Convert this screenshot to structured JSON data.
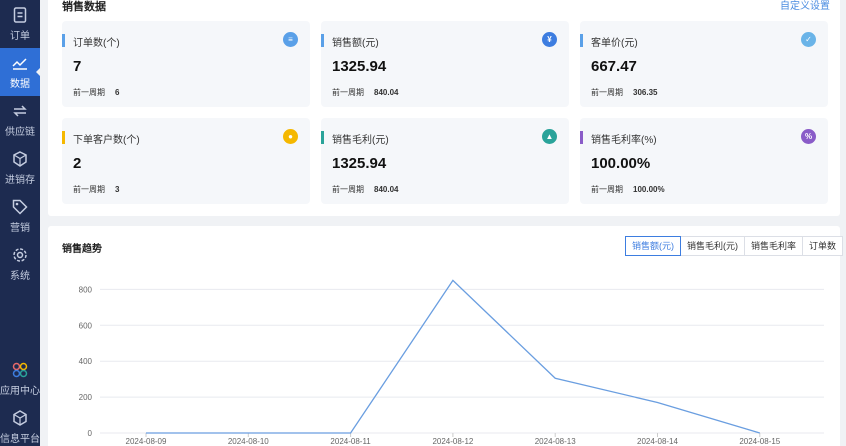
{
  "sidebar": {
    "items": [
      {
        "label": "订单",
        "icon": "order-icon"
      },
      {
        "label": "数据",
        "icon": "chart-line-icon",
        "active": true
      },
      {
        "label": "供应链",
        "icon": "exchange-icon"
      },
      {
        "label": "进销存",
        "icon": "box-icon"
      },
      {
        "label": "营销",
        "icon": "tag-icon"
      },
      {
        "label": "系统",
        "icon": "gear-icon"
      },
      {
        "label": "应用中心",
        "icon": "apps-icon"
      },
      {
        "label": "信息平台",
        "icon": "cube-icon"
      }
    ]
  },
  "header": {
    "title": "销售数据",
    "link": "自定义设置"
  },
  "cards": [
    {
      "label": "订单数(个)",
      "value": "7",
      "prev_label": "前一周期",
      "prev_value": "6",
      "bar_color": "#5aa0e8",
      "icon_color": "#5aa0e8",
      "icon": "document-icon",
      "glyph": "≡"
    },
    {
      "label": "销售额(元)",
      "value": "1325.94",
      "prev_label": "前一周期",
      "prev_value": "840.04",
      "bar_color": "#5aa0e8",
      "icon_color": "#3d7de0",
      "icon": "yen-icon",
      "glyph": "¥"
    },
    {
      "label": "客单价(元)",
      "value": "667.47",
      "prev_label": "前一周期",
      "prev_value": "306.35",
      "bar_color": "#5aa0e8",
      "icon_color": "#6ab4e8",
      "icon": "receipt-icon",
      "glyph": "✓"
    },
    {
      "label": "下单客户数(个)",
      "value": "2",
      "prev_label": "前一周期",
      "prev_value": "3",
      "bar_color": "#f5b800",
      "icon_color": "#f5b800",
      "icon": "user-icon",
      "glyph": "●"
    },
    {
      "label": "销售毛利(元)",
      "value": "1325.94",
      "prev_label": "前一周期",
      "prev_value": "840.04",
      "bar_color": "#2aa39a",
      "icon_color": "#2aa39a",
      "icon": "money-bag-icon",
      "glyph": "▲"
    },
    {
      "label": "销售毛利率(%)",
      "value": "100.00%",
      "prev_label": "前一周期",
      "prev_value": "100.00%",
      "bar_color": "#8a5cc8",
      "icon_color": "#8a5cc8",
      "icon": "percent-icon",
      "glyph": "%"
    }
  ],
  "trend": {
    "title": "销售趋势",
    "tabs": [
      "销售额(元)",
      "销售毛利(元)",
      "销售毛利率",
      "订单数"
    ],
    "active_tab": 0
  },
  "chart_data": {
    "type": "line",
    "x": [
      "2024-08-09",
      "2024-08-10",
      "2024-08-11",
      "2024-08-12",
      "2024-08-13",
      "2024-08-14",
      "2024-08-15"
    ],
    "series": [
      {
        "values": [
          0,
          0,
          0,
          850,
          305,
          170,
          0
        ]
      }
    ],
    "yticks": [
      0,
      200,
      400,
      600,
      800
    ],
    "ylim": [
      0,
      800
    ],
    "grid": true,
    "line_color": "#6a9ee0"
  }
}
